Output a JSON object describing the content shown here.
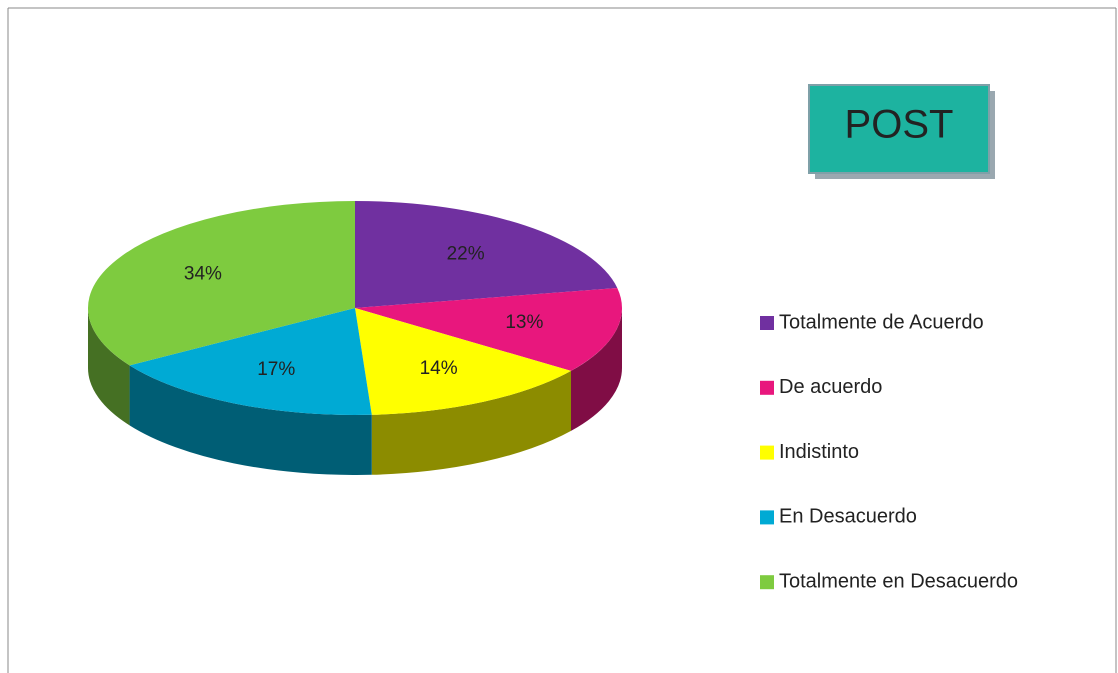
{
  "chart_data": {
    "type": "pie",
    "title": "POST",
    "categories": [
      "Totalmente de Acuerdo",
      "De acuerdo",
      "Indistinto",
      "En Desacuerdo",
      "Totalmente en Desacuerdo"
    ],
    "values": [
      22,
      13,
      14,
      17,
      34
    ],
    "value_labels": [
      "22%",
      "13%",
      "14%",
      "17%",
      "34%"
    ],
    "colors": [
      "#7030a0",
      "#e8177d",
      "#ffff00",
      "#00aad4",
      "#7ecb3f"
    ],
    "legend": "right"
  }
}
